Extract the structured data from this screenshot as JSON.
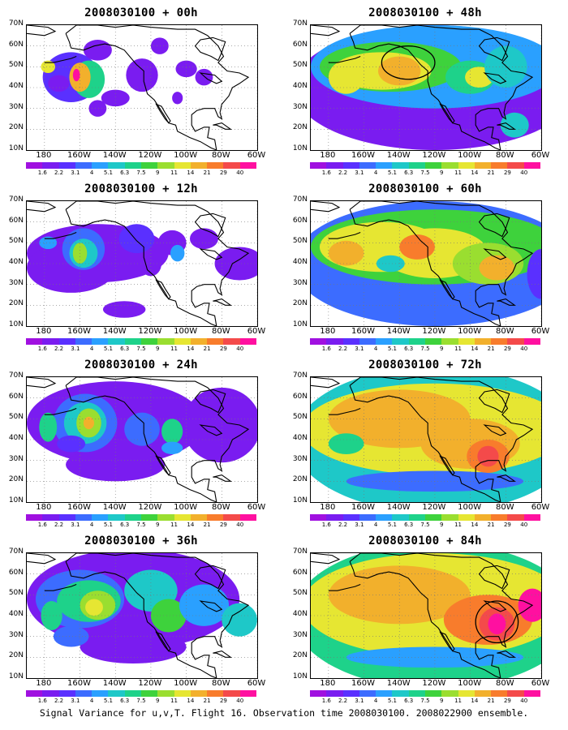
{
  "caption": "Signal Variance for u,v,T. Flight 16. Observation time 2008030100. 2008022900 ensemble.",
  "lat_labels": [
    "70N",
    "60N",
    "50N",
    "40N",
    "30N",
    "20N",
    "10N"
  ],
  "lon_labels": [
    "180",
    "160W",
    "140W",
    "120W",
    "100W",
    "80W",
    "60W"
  ],
  "colorbar": {
    "labels": [
      "1.6",
      "2.2",
      "3.1",
      "4",
      "5.1",
      "6.3",
      "7.5",
      "9",
      "11",
      "14",
      "21",
      "29",
      "40"
    ],
    "colors": [
      "#a010e0",
      "#7a1cf0",
      "#5a30ff",
      "#3c6cff",
      "#2aa0ff",
      "#1ec8c8",
      "#1ed28a",
      "#3ed23c",
      "#9ade30",
      "#e6e632",
      "#f2b02c",
      "#f87c2c",
      "#f44a4a",
      "#ff10a0"
    ]
  },
  "panels": [
    {
      "id": "00h",
      "title": "2008030100 + 00h",
      "col": 0,
      "row": 0,
      "blobs": [
        {
          "cx": -165,
          "cy": 45,
          "rx": 16,
          "ry": 12,
          "l": 2
        },
        {
          "cx": -155,
          "cy": 44,
          "rx": 9,
          "ry": 9,
          "l": 6
        },
        {
          "cx": -160,
          "cy": 45,
          "rx": 6,
          "ry": 7,
          "l": 10
        },
        {
          "cx": -162,
          "cy": 46,
          "rx": 2,
          "ry": 3,
          "l": 13
        },
        {
          "cx": -178,
          "cy": 50,
          "rx": 4,
          "ry": 3,
          "l": 9
        },
        {
          "cx": -150,
          "cy": 58,
          "rx": 8,
          "ry": 5,
          "l": 1
        },
        {
          "cx": -125,
          "cy": 46,
          "rx": 9,
          "ry": 8,
          "l": 1
        },
        {
          "cx": -140,
          "cy": 35,
          "rx": 8,
          "ry": 4,
          "l": 1
        },
        {
          "cx": -100,
          "cy": 49,
          "rx": 6,
          "ry": 4,
          "l": 1
        },
        {
          "cx": -90,
          "cy": 45,
          "rx": 5,
          "ry": 4,
          "l": 1
        },
        {
          "cx": -115,
          "cy": 60,
          "rx": 5,
          "ry": 4,
          "l": 1
        },
        {
          "cx": -105,
          "cy": 35,
          "rx": 3,
          "ry": 3,
          "l": 1
        },
        {
          "cx": -150,
          "cy": 30,
          "rx": 5,
          "ry": 4,
          "l": 1
        },
        {
          "cx": -172,
          "cy": 42,
          "rx": 6,
          "ry": 4,
          "l": 1
        }
      ]
    },
    {
      "id": "12h",
      "title": "2008030100 + 12h",
      "col": 0,
      "row": 1,
      "blobs": [
        {
          "cx": -150,
          "cy": 45,
          "rx": 40,
          "ry": 14,
          "l": 1
        },
        {
          "cx": -165,
          "cy": 38,
          "rx": 25,
          "ry": 12,
          "l": 1
        },
        {
          "cx": -158,
          "cy": 47,
          "rx": 12,
          "ry": 10,
          "l": 3
        },
        {
          "cx": -158,
          "cy": 45,
          "rx": 8,
          "ry": 7,
          "l": 5
        },
        {
          "cx": -160,
          "cy": 45,
          "rx": 4,
          "ry": 5,
          "l": 8
        },
        {
          "cx": -178,
          "cy": 50,
          "rx": 5,
          "ry": 3,
          "l": 4
        },
        {
          "cx": -128,
          "cy": 52,
          "rx": 10,
          "ry": 7,
          "l": 2
        },
        {
          "cx": -108,
          "cy": 50,
          "rx": 8,
          "ry": 6,
          "l": 1
        },
        {
          "cx": -105,
          "cy": 45,
          "rx": 4,
          "ry": 4,
          "l": 4
        },
        {
          "cx": -120,
          "cy": 40,
          "rx": 6,
          "ry": 6,
          "l": 1
        },
        {
          "cx": -70,
          "cy": 40,
          "rx": 14,
          "ry": 8,
          "l": 1
        },
        {
          "cx": -135,
          "cy": 18,
          "rx": 12,
          "ry": 4,
          "l": 1
        },
        {
          "cx": -90,
          "cy": 52,
          "rx": 8,
          "ry": 5,
          "l": 1
        }
      ]
    },
    {
      "id": "24h",
      "title": "2008030100 + 24h",
      "col": 0,
      "row": 2,
      "blobs": [
        {
          "cx": -140,
          "cy": 48,
          "rx": 50,
          "ry": 20,
          "l": 1
        },
        {
          "cx": -80,
          "cy": 47,
          "rx": 22,
          "ry": 18,
          "l": 1
        },
        {
          "cx": -140,
          "cy": 28,
          "rx": 28,
          "ry": 8,
          "l": 1
        },
        {
          "cx": -157,
          "cy": 48,
          "rx": 18,
          "ry": 14,
          "l": 3
        },
        {
          "cx": -157,
          "cy": 48,
          "rx": 12,
          "ry": 10,
          "l": 5
        },
        {
          "cx": -155,
          "cy": 48,
          "rx": 7,
          "ry": 7,
          "l": 8
        },
        {
          "cx": -155,
          "cy": 48,
          "rx": 3,
          "ry": 3,
          "l": 10
        },
        {
          "cx": -178,
          "cy": 46,
          "rx": 5,
          "ry": 7,
          "l": 6
        },
        {
          "cx": -125,
          "cy": 45,
          "rx": 10,
          "ry": 8,
          "l": 3
        },
        {
          "cx": -108,
          "cy": 44,
          "rx": 6,
          "ry": 6,
          "l": 6
        },
        {
          "cx": -108,
          "cy": 36,
          "rx": 6,
          "ry": 3,
          "l": 4
        },
        {
          "cx": -165,
          "cy": 38,
          "rx": 8,
          "ry": 4,
          "l": 2
        }
      ]
    },
    {
      "id": "36h",
      "title": "2008030100 + 36h",
      "col": 0,
      "row": 3,
      "blobs": [
        {
          "cx": -130,
          "cy": 48,
          "rx": 60,
          "ry": 24,
          "l": 1
        },
        {
          "cx": -130,
          "cy": 25,
          "rx": 30,
          "ry": 8,
          "l": 1
        },
        {
          "cx": -160,
          "cy": 48,
          "rx": 25,
          "ry": 14,
          "l": 3
        },
        {
          "cx": -155,
          "cy": 47,
          "rx": 18,
          "ry": 10,
          "l": 6
        },
        {
          "cx": -150,
          "cy": 45,
          "rx": 10,
          "ry": 7,
          "l": 8
        },
        {
          "cx": -152,
          "cy": 44,
          "rx": 5,
          "ry": 4,
          "l": 9
        },
        {
          "cx": -120,
          "cy": 52,
          "rx": 15,
          "ry": 10,
          "l": 5
        },
        {
          "cx": -110,
          "cy": 40,
          "rx": 10,
          "ry": 8,
          "l": 7
        },
        {
          "cx": -90,
          "cy": 45,
          "rx": 14,
          "ry": 10,
          "l": 4
        },
        {
          "cx": -70,
          "cy": 38,
          "rx": 10,
          "ry": 8,
          "l": 5
        },
        {
          "cx": -176,
          "cy": 40,
          "rx": 6,
          "ry": 7,
          "l": 6
        },
        {
          "cx": -165,
          "cy": 30,
          "rx": 10,
          "ry": 5,
          "l": 3
        }
      ]
    },
    {
      "id": "48h",
      "title": "2008030100 + 48h",
      "col": 1,
      "row": 0,
      "blobs": [
        {
          "cx": -120,
          "cy": 40,
          "rx": 80,
          "ry": 30,
          "l": 1
        },
        {
          "cx": -120,
          "cy": 50,
          "rx": 70,
          "ry": 20,
          "l": 4
        },
        {
          "cx": -145,
          "cy": 50,
          "rx": 40,
          "ry": 12,
          "l": 7
        },
        {
          "cx": -150,
          "cy": 48,
          "rx": 28,
          "ry": 9,
          "l": 9
        },
        {
          "cx": -140,
          "cy": 48,
          "rx": 12,
          "ry": 7,
          "l": 10
        },
        {
          "cx": -170,
          "cy": 45,
          "rx": 10,
          "ry": 8,
          "l": 9
        },
        {
          "cx": -100,
          "cy": 45,
          "rx": 14,
          "ry": 8,
          "l": 6
        },
        {
          "cx": -95,
          "cy": 45,
          "rx": 8,
          "ry": 5,
          "l": 9
        },
        {
          "cx": -80,
          "cy": 50,
          "rx": 12,
          "ry": 10,
          "l": 5
        },
        {
          "cx": -75,
          "cy": 22,
          "rx": 8,
          "ry": 6,
          "l": 5
        }
      ],
      "circle": {
        "cx": -135,
        "cy": 52,
        "rx": 15,
        "ry": 8
      }
    },
    {
      "id": "60h",
      "title": "2008030100 + 60h",
      "col": 1,
      "row": 1,
      "blobs": [
        {
          "cx": -120,
          "cy": 40,
          "rx": 80,
          "ry": 30,
          "l": 3
        },
        {
          "cx": -120,
          "cy": 48,
          "rx": 70,
          "ry": 18,
          "l": 7
        },
        {
          "cx": -150,
          "cy": 48,
          "rx": 35,
          "ry": 12,
          "l": 9
        },
        {
          "cx": -120,
          "cy": 45,
          "rx": 30,
          "ry": 12,
          "l": 9
        },
        {
          "cx": -130,
          "cy": 48,
          "rx": 10,
          "ry": 6,
          "l": 11
        },
        {
          "cx": -90,
          "cy": 40,
          "rx": 20,
          "ry": 10,
          "l": 8
        },
        {
          "cx": -85,
          "cy": 38,
          "rx": 10,
          "ry": 6,
          "l": 10
        },
        {
          "cx": -170,
          "cy": 45,
          "rx": 10,
          "ry": 6,
          "l": 10
        },
        {
          "cx": -145,
          "cy": 40,
          "rx": 8,
          "ry": 4,
          "l": 5
        },
        {
          "cx": -60,
          "cy": 35,
          "rx": 8,
          "ry": 12,
          "l": 2
        }
      ]
    },
    {
      "id": "72h",
      "title": "2008030100 + 72h",
      "col": 1,
      "row": 2,
      "blobs": [
        {
          "cx": -120,
          "cy": 40,
          "rx": 80,
          "ry": 35,
          "l": 5
        },
        {
          "cx": -120,
          "cy": 45,
          "rx": 75,
          "ry": 22,
          "l": 9
        },
        {
          "cx": -140,
          "cy": 50,
          "rx": 40,
          "ry": 14,
          "l": 10
        },
        {
          "cx": -100,
          "cy": 38,
          "rx": 28,
          "ry": 12,
          "l": 10
        },
        {
          "cx": -90,
          "cy": 32,
          "rx": 12,
          "ry": 8,
          "l": 11
        },
        {
          "cx": -90,
          "cy": 32,
          "rx": 6,
          "ry": 5,
          "l": 12
        },
        {
          "cx": -170,
          "cy": 38,
          "rx": 10,
          "ry": 5,
          "l": 6
        },
        {
          "cx": -120,
          "cy": 20,
          "rx": 50,
          "ry": 5,
          "l": 3
        }
      ]
    },
    {
      "id": "84h",
      "title": "2008030100 + 84h",
      "col": 1,
      "row": 3,
      "blobs": [
        {
          "cx": -120,
          "cy": 40,
          "rx": 80,
          "ry": 35,
          "l": 6
        },
        {
          "cx": -120,
          "cy": 45,
          "rx": 75,
          "ry": 25,
          "l": 9
        },
        {
          "cx": -140,
          "cy": 50,
          "rx": 40,
          "ry": 14,
          "l": 10
        },
        {
          "cx": -90,
          "cy": 38,
          "rx": 25,
          "ry": 12,
          "l": 11
        },
        {
          "cx": -85,
          "cy": 36,
          "rx": 10,
          "ry": 8,
          "l": 12
        },
        {
          "cx": -85,
          "cy": 36,
          "rx": 5,
          "ry": 5,
          "l": 13
        },
        {
          "cx": -65,
          "cy": 45,
          "rx": 8,
          "ry": 8,
          "l": 13
        },
        {
          "cx": -120,
          "cy": 20,
          "rx": 50,
          "ry": 5,
          "l": 4
        }
      ],
      "circle": {
        "cx": -85,
        "cy": 37,
        "rx": 12,
        "ry": 10
      }
    }
  ]
}
